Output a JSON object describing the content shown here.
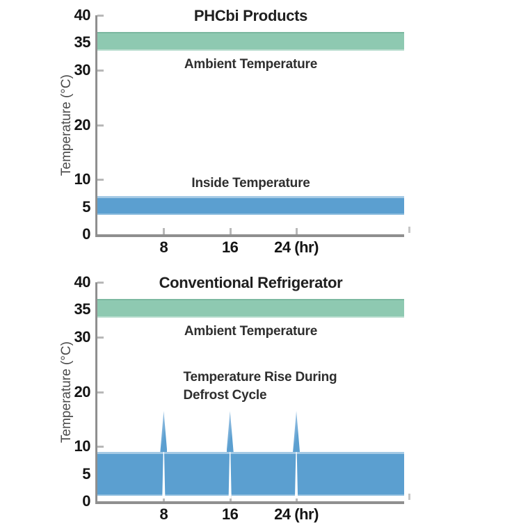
{
  "figure": {
    "background": "#ffffff",
    "axis_color": "#8f8f8f",
    "tick_color": "#b8b8b8"
  },
  "chart_data": [
    {
      "type": "area",
      "title": "PHCbi Products",
      "ylabel": "Temperature (°C)",
      "xlabel": "",
      "ylim": [
        0,
        40
      ],
      "xlim": [
        0,
        37
      ],
      "grid": false,
      "legend": "none",
      "yticks": [
        0,
        5,
        10,
        20,
        30,
        35,
        40
      ],
      "ytick_marks": [
        10,
        20,
        30,
        40
      ],
      "xticks": [
        {
          "value": 8,
          "label": "8"
        },
        {
          "value": 16,
          "label": "16"
        },
        {
          "value": 24,
          "label": "24 (hr)"
        }
      ],
      "bands": [
        {
          "kind": "ambient",
          "label": "Ambient Temperature",
          "label_placement": "below",
          "from": 33.5,
          "to": 37,
          "color": "#8ec9b1"
        },
        {
          "kind": "inside",
          "label": "Inside Temperature",
          "label_placement": "above",
          "from": 3.5,
          "to": 7,
          "color": "#5b9fd0"
        }
      ],
      "spikes": null
    },
    {
      "type": "area",
      "title": "Conventional Refrigerator",
      "ylabel": "Temperature (°C)",
      "xlabel": "",
      "ylim": [
        0,
        40
      ],
      "xlim": [
        0,
        37
      ],
      "grid": false,
      "legend": "none",
      "yticks": [
        0,
        5,
        10,
        20,
        30,
        35,
        40
      ],
      "ytick_marks": [
        10,
        20,
        30,
        40
      ],
      "xticks": [
        {
          "value": 8,
          "label": "8"
        },
        {
          "value": 16,
          "label": "16"
        },
        {
          "value": 24,
          "label": "24 (hr)"
        }
      ],
      "bands": [
        {
          "kind": "ambient",
          "label": "Ambient Temperature",
          "label_placement": "below",
          "from": 33.5,
          "to": 37,
          "color": "#8ec9b1"
        },
        {
          "kind": "inside",
          "label": "",
          "label_placement": "none",
          "from": 1,
          "to": 9,
          "color": "#5b9fd0"
        }
      ],
      "spikes": {
        "annotation": [
          "Temperature Rise During",
          "Defrost Cycle"
        ],
        "x": [
          8,
          16,
          24
        ],
        "peak": 16.5,
        "base": 9
      }
    }
  ]
}
